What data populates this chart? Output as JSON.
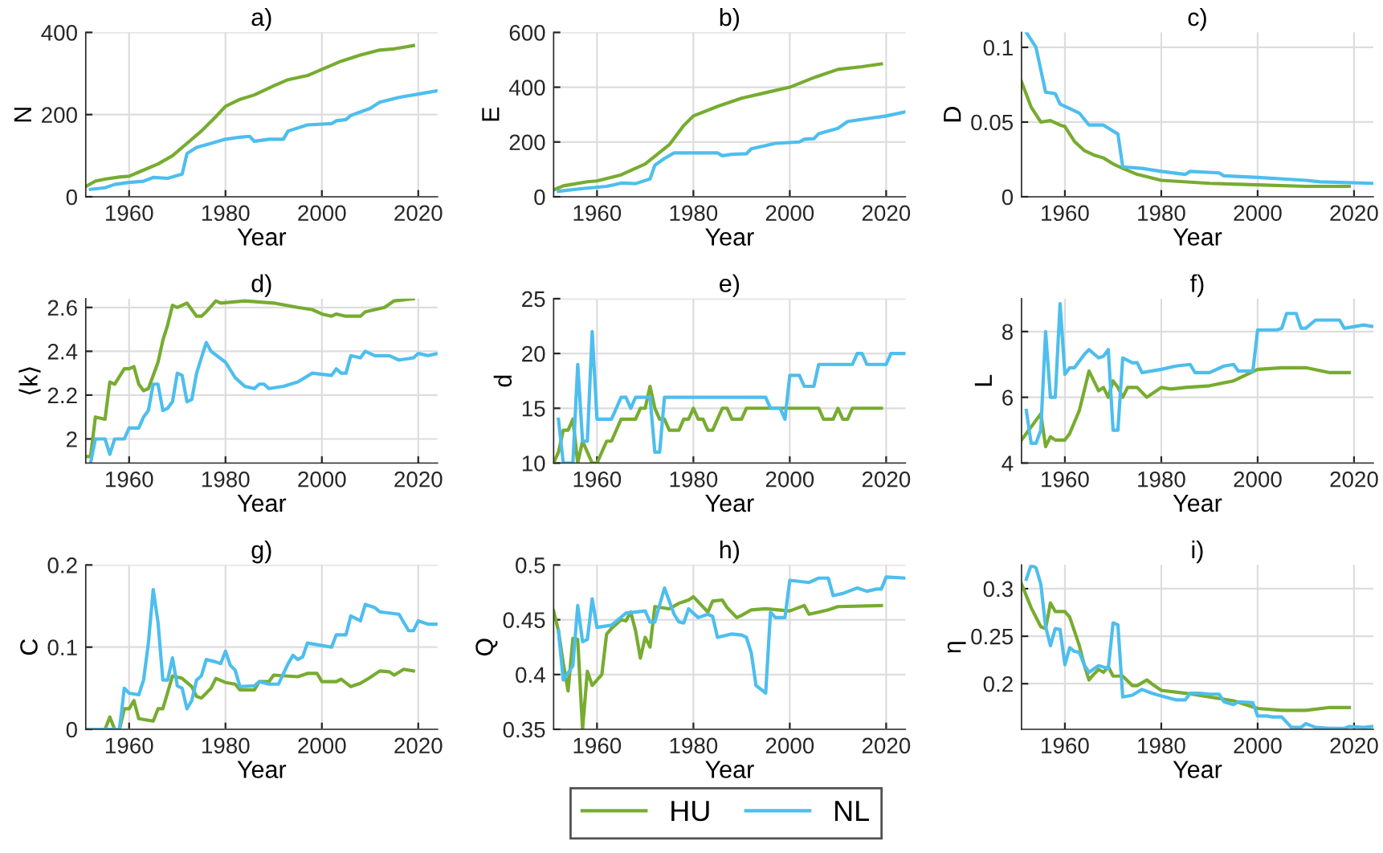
{
  "chart_data": [
    {
      "type": "line",
      "title": "a)",
      "xlabel": "Year",
      "ylabel": "N",
      "xlim": [
        1951,
        2024
      ],
      "xticks": [
        1960,
        1980,
        2000,
        2020
      ],
      "ylim": [
        0,
        400
      ],
      "yticks": [
        0,
        200,
        400
      ],
      "grid": true,
      "legend": "bottom",
      "series": [
        {
          "name": "HU",
          "color": "#77ac30",
          "x": [
            1951,
            1953,
            1955,
            1958,
            1960,
            1963,
            1966,
            1969,
            1972,
            1975,
            1978,
            1980,
            1983,
            1986,
            1990,
            1993,
            1997,
            2000,
            2004,
            2008,
            2012,
            2015,
            2019
          ],
          "values": [
            25,
            38,
            43,
            48,
            50,
            65,
            80,
            100,
            130,
            160,
            195,
            220,
            237,
            248,
            270,
            285,
            295,
            310,
            330,
            345,
            357,
            360,
            368
          ]
        },
        {
          "name": "NL",
          "color": "#4dbeee",
          "x": [
            1952,
            1955,
            1957,
            1960,
            1963,
            1965,
            1968,
            1971,
            1972,
            1974,
            1977,
            1980,
            1983,
            1985,
            1986,
            1989,
            1992,
            1993,
            1997,
            2002,
            2003,
            2005,
            2006,
            2010,
            2012,
            2016,
            2020,
            2024
          ],
          "values": [
            18,
            22,
            30,
            35,
            38,
            47,
            45,
            55,
            105,
            120,
            130,
            140,
            145,
            147,
            135,
            140,
            140,
            160,
            175,
            178,
            185,
            188,
            198,
            215,
            230,
            242,
            250,
            258
          ]
        }
      ]
    },
    {
      "type": "line",
      "title": "b)",
      "xlabel": "Year",
      "ylabel": "E",
      "xlim": [
        1951,
        2024
      ],
      "xticks": [
        1960,
        1980,
        2000,
        2020
      ],
      "ylim": [
        0,
        600
      ],
      "yticks": [
        0,
        200,
        400,
        600
      ],
      "grid": true,
      "legend": false,
      "series": [
        {
          "color": "#77ac30",
          "x": [
            1951,
            1953,
            1958,
            1960,
            1965,
            1970,
            1975,
            1978,
            1980,
            1985,
            1990,
            1995,
            2000,
            2005,
            2010,
            2015,
            2019
          ],
          "values": [
            25,
            40,
            55,
            58,
            80,
            120,
            190,
            260,
            295,
            330,
            360,
            380,
            400,
            435,
            465,
            475,
            485
          ]
        },
        {
          "color": "#4dbeee",
          "x": [
            1952,
            1957,
            1962,
            1965,
            1968,
            1971,
            1972,
            1974,
            1976,
            1985,
            1986,
            1988,
            1991,
            1992,
            1997,
            2002,
            2003,
            2005,
            2006,
            2010,
            2012,
            2016,
            2020,
            2024
          ],
          "values": [
            20,
            30,
            38,
            50,
            48,
            65,
            115,
            140,
            160,
            160,
            150,
            155,
            157,
            175,
            195,
            200,
            210,
            212,
            230,
            250,
            275,
            285,
            295,
            310
          ]
        }
      ]
    },
    {
      "type": "line",
      "title": "c)",
      "xlabel": "Year",
      "ylabel": "D",
      "xlim": [
        1951,
        2024
      ],
      "xticks": [
        1960,
        1980,
        2000,
        2020
      ],
      "ylim": [
        0,
        0.11
      ],
      "yticks": [
        0,
        0.05,
        0.1
      ],
      "grid": true,
      "legend": false,
      "series": [
        {
          "color": "#77ac30",
          "x": [
            1951,
            1953,
            1955,
            1957,
            1959,
            1960,
            1962,
            1964,
            1966,
            1968,
            1970,
            1972,
            1975,
            1980,
            1990,
            2000,
            2010,
            2019
          ],
          "values": [
            0.077,
            0.06,
            0.05,
            0.051,
            0.048,
            0.047,
            0.037,
            0.031,
            0.028,
            0.026,
            0.022,
            0.019,
            0.015,
            0.011,
            0.009,
            0.008,
            0.007,
            0.007
          ]
        },
        {
          "color": "#4dbeee",
          "x": [
            1952,
            1954,
            1956,
            1958,
            1959,
            1961,
            1963,
            1965,
            1968,
            1971,
            1972,
            1976,
            1980,
            1985,
            1986,
            1992,
            1993,
            2000,
            2010,
            2013,
            2024
          ],
          "values": [
            0.11,
            0.1,
            0.07,
            0.069,
            0.062,
            0.059,
            0.056,
            0.048,
            0.048,
            0.042,
            0.02,
            0.019,
            0.017,
            0.015,
            0.017,
            0.016,
            0.014,
            0.013,
            0.011,
            0.01,
            0.009
          ]
        }
      ]
    },
    {
      "type": "line",
      "title": "d)",
      "xlabel": "Year",
      "ylabel": "⟨k⟩",
      "xlim": [
        1951,
        2024
      ],
      "xticks": [
        1960,
        1980,
        2000,
        2020
      ],
      "ylim": [
        1.89,
        2.64
      ],
      "yticks": [
        2,
        2.2,
        2.4,
        2.6
      ],
      "grid": true,
      "legend": false,
      "series": [
        {
          "color": "#77ac30",
          "x": [
            1951,
            1952,
            1953,
            1955,
            1956,
            1957,
            1959,
            1960,
            1961,
            1962,
            1963,
            1964,
            1966,
            1967,
            1968,
            1969,
            1970,
            1972,
            1974,
            1975,
            1976,
            1978,
            1979,
            1984,
            1990,
            1995,
            1998,
            2000,
            2002,
            2003,
            2005,
            2008,
            2009,
            2013,
            2015,
            2019
          ],
          "values": [
            1.92,
            1.92,
            2.1,
            2.09,
            2.26,
            2.25,
            2.32,
            2.32,
            2.33,
            2.25,
            2.22,
            2.23,
            2.35,
            2.45,
            2.52,
            2.61,
            2.6,
            2.62,
            2.56,
            2.56,
            2.58,
            2.63,
            2.62,
            2.63,
            2.62,
            2.6,
            2.59,
            2.57,
            2.56,
            2.57,
            2.56,
            2.56,
            2.58,
            2.6,
            2.63,
            2.64
          ]
        },
        {
          "color": "#4dbeee",
          "x": [
            1952,
            1953,
            1955,
            1956,
            1957,
            1959,
            1960,
            1962,
            1963,
            1964,
            1965,
            1966,
            1967,
            1968,
            1969,
            1970,
            1971,
            1972,
            1973,
            1974,
            1976,
            1977,
            1980,
            1982,
            1984,
            1986,
            1987,
            1988,
            1989,
            1992,
            1995,
            1998,
            2002,
            2003,
            2004,
            2005,
            2006,
            2008,
            2009,
            2011,
            2014,
            2016,
            2019,
            2020,
            2022,
            2024
          ],
          "values": [
            1.89,
            2.0,
            2.0,
            1.93,
            2.0,
            2.0,
            2.05,
            2.05,
            2.1,
            2.13,
            2.25,
            2.25,
            2.13,
            2.14,
            2.17,
            2.3,
            2.29,
            2.17,
            2.18,
            2.3,
            2.44,
            2.4,
            2.35,
            2.28,
            2.24,
            2.23,
            2.25,
            2.25,
            2.23,
            2.24,
            2.26,
            2.3,
            2.29,
            2.32,
            2.3,
            2.3,
            2.38,
            2.37,
            2.4,
            2.38,
            2.38,
            2.36,
            2.37,
            2.39,
            2.38,
            2.39
          ]
        }
      ]
    },
    {
      "type": "line",
      "title": "e)",
      "xlabel": "Year",
      "ylabel": "d",
      "xlim": [
        1951,
        2024
      ],
      "xticks": [
        1960,
        1980,
        2000,
        2020
      ],
      "ylim": [
        10,
        25
      ],
      "yticks": [
        10,
        15,
        20,
        25
      ],
      "grid": true,
      "legend": false,
      "series": [
        {
          "color": "#77ac30",
          "x": [
            1951,
            1952,
            1953,
            1954,
            1955,
            1956,
            1957,
            1958,
            1959,
            1960,
            1961,
            1962,
            1963,
            1964,
            1965,
            1968,
            1969,
            1970,
            1971,
            1972,
            1973,
            1974,
            1975,
            1977,
            1978,
            1979,
            1980,
            1981,
            1982,
            1983,
            1984,
            1985,
            1986,
            1987,
            1988,
            1990,
            1991,
            2006,
            2007,
            2009,
            2010,
            2011,
            2012,
            2013,
            2019
          ],
          "values": [
            10,
            11,
            13,
            13,
            14,
            10,
            12,
            11,
            10,
            10,
            11,
            12,
            12,
            13,
            14,
            14,
            15,
            15,
            17,
            15,
            14,
            14,
            13,
            13,
            14,
            14,
            15,
            14,
            14,
            13,
            13,
            14,
            15,
            15,
            14,
            14,
            15,
            15,
            14,
            14,
            15,
            14,
            14,
            15,
            15
          ]
        },
        {
          "color": "#4dbeee",
          "x": [
            1952,
            1953,
            1955,
            1956,
            1957,
            1958,
            1959,
            1960,
            1963,
            1965,
            1966,
            1967,
            1968,
            1970,
            1971,
            1972,
            1973,
            1974,
            1995,
            1996,
            1998,
            1999,
            2000,
            2002,
            2003,
            2005,
            2006,
            2013,
            2014,
            2015,
            2016,
            2020,
            2021,
            2024
          ],
          "values": [
            14,
            10,
            10,
            19,
            12,
            12,
            22,
            14,
            14,
            16,
            16,
            15,
            16,
            16,
            16,
            11,
            11,
            16,
            16,
            15,
            15,
            14,
            18,
            18,
            17,
            17,
            19,
            19,
            20,
            20,
            19,
            19,
            20,
            20
          ]
        }
      ]
    },
    {
      "type": "line",
      "title": "f)",
      "xlabel": "Year",
      "ylabel": "L",
      "xlim": [
        1951,
        2024
      ],
      "xticks": [
        1960,
        1980,
        2000,
        2020
      ],
      "ylim": [
        4,
        9
      ],
      "yticks": [
        4,
        6,
        8
      ],
      "grid": true,
      "legend": false,
      "series": [
        {
          "color": "#77ac30",
          "x": [
            1951,
            1953,
            1955,
            1956,
            1957,
            1958,
            1960,
            1961,
            1963,
            1964,
            1965,
            1966,
            1967,
            1968,
            1969,
            1970,
            1971,
            1972,
            1973,
            1975,
            1977,
            1978,
            1980,
            1982,
            1985,
            1990,
            1995,
            2000,
            2005,
            2010,
            2015,
            2019
          ],
          "values": [
            4.7,
            5.1,
            5.5,
            4.5,
            4.8,
            4.7,
            4.7,
            4.9,
            5.6,
            6.2,
            6.8,
            6.5,
            6.2,
            6.3,
            6.0,
            6.5,
            6.3,
            6.0,
            6.3,
            6.3,
            6.0,
            6.1,
            6.3,
            6.25,
            6.3,
            6.35,
            6.5,
            6.85,
            6.9,
            6.9,
            6.75,
            6.75
          ]
        },
        {
          "color": "#4dbeee",
          "x": [
            1952,
            1953,
            1954,
            1955,
            1956,
            1957,
            1958,
            1959,
            1960,
            1961,
            1962,
            1964,
            1965,
            1967,
            1968,
            1969,
            1970,
            1971,
            1972,
            1974,
            1975,
            1976,
            1978,
            1980,
            1983,
            1986,
            1987,
            1990,
            1993,
            1995,
            1996,
            1999,
            2000,
            2004,
            2005,
            2006,
            2008,
            2009,
            2010,
            2012,
            2017,
            2018,
            2020,
            2022,
            2024
          ],
          "values": [
            5.6,
            4.6,
            4.6,
            5.0,
            8.0,
            6.0,
            6.0,
            8.85,
            6.7,
            6.9,
            6.9,
            7.3,
            7.45,
            7.2,
            7.25,
            7.45,
            5.0,
            5.0,
            7.2,
            7.05,
            7.05,
            6.75,
            6.8,
            6.85,
            6.95,
            7.0,
            6.75,
            6.75,
            6.95,
            7.0,
            6.8,
            6.8,
            8.05,
            8.05,
            8.1,
            8.55,
            8.55,
            8.1,
            8.1,
            8.35,
            8.35,
            8.1,
            8.15,
            8.2,
            8.15
          ]
        }
      ]
    },
    {
      "type": "line",
      "title": "g)",
      "xlabel": "Year",
      "ylabel": "C",
      "xlim": [
        1951,
        2024
      ],
      "xticks": [
        1960,
        1980,
        2000,
        2020
      ],
      "ylim": [
        0,
        0.2
      ],
      "yticks": [
        0,
        0.1,
        0.2
      ],
      "grid": true,
      "legend": false,
      "series": [
        {
          "color": "#77ac30",
          "x": [
            1951,
            1955,
            1956,
            1957,
            1958,
            1959,
            1960,
            1961,
            1962,
            1965,
            1966,
            1967,
            1968,
            1969,
            1971,
            1973,
            1974,
            1975,
            1977,
            1978,
            1980,
            1982,
            1983,
            1986,
            1987,
            1989,
            1990,
            1995,
            1997,
            1999,
            2000,
            2003,
            2004,
            2006,
            2008,
            2010,
            2012,
            2014,
            2015,
            2017,
            2019
          ],
          "values": [
            0,
            0,
            0.015,
            0,
            0,
            0.025,
            0.025,
            0.035,
            0.013,
            0.01,
            0.025,
            0.025,
            0.045,
            0.065,
            0.062,
            0.052,
            0.04,
            0.038,
            0.05,
            0.062,
            0.057,
            0.055,
            0.048,
            0.048,
            0.058,
            0.058,
            0.066,
            0.064,
            0.068,
            0.068,
            0.058,
            0.058,
            0.061,
            0.052,
            0.056,
            0.063,
            0.071,
            0.07,
            0.066,
            0.073,
            0.071
          ]
        },
        {
          "color": "#4dbeee",
          "x": [
            1952,
            1958,
            1959,
            1960,
            1962,
            1963,
            1964,
            1965,
            1966,
            1967,
            1968,
            1969,
            1970,
            1971,
            1972,
            1973,
            1974,
            1975,
            1976,
            1978,
            1979,
            1980,
            1981,
            1982,
            1983,
            1986,
            1987,
            1989,
            1991,
            1993,
            1994,
            1995,
            1996,
            1997,
            1999,
            2002,
            2003,
            2005,
            2006,
            2008,
            2009,
            2011,
            2012,
            2016,
            2017,
            2018,
            2019,
            2020,
            2022,
            2024
          ],
          "values": [
            0,
            0,
            0.05,
            0.044,
            0.042,
            0.06,
            0.105,
            0.17,
            0.13,
            0.06,
            0.06,
            0.087,
            0.053,
            0.05,
            0.025,
            0.035,
            0.06,
            0.065,
            0.085,
            0.082,
            0.08,
            0.095,
            0.078,
            0.072,
            0.052,
            0.053,
            0.058,
            0.055,
            0.055,
            0.08,
            0.09,
            0.085,
            0.088,
            0.105,
            0.103,
            0.1,
            0.115,
            0.115,
            0.138,
            0.132,
            0.152,
            0.148,
            0.143,
            0.14,
            0.13,
            0.12,
            0.12,
            0.132,
            0.128,
            0.128
          ]
        }
      ]
    },
    {
      "type": "line",
      "title": "h)",
      "xlabel": "Year",
      "ylabel": "Q",
      "xlim": [
        1951,
        2024
      ],
      "xticks": [
        1960,
        1980,
        2000,
        2020
      ],
      "ylim": [
        0.35,
        0.5
      ],
      "yticks": [
        0.35,
        0.4,
        0.45,
        0.5
      ],
      "grid": true,
      "legend": false,
      "series": [
        {
          "color": "#77ac30",
          "x": [
            1951,
            1952,
            1953,
            1954,
            1955,
            1956,
            1957,
            1958,
            1959,
            1961,
            1962,
            1963,
            1965,
            1966,
            1967,
            1968,
            1969,
            1970,
            1971,
            1972,
            1975,
            1977,
            1979,
            1980,
            1983,
            1984,
            1986,
            1987,
            1989,
            1990,
            1992,
            1995,
            2000,
            2003,
            2004,
            2008,
            2010,
            2019
          ],
          "values": [
            0.458,
            0.44,
            0.41,
            0.385,
            0.433,
            0.432,
            0.35,
            0.403,
            0.39,
            0.4,
            0.437,
            0.442,
            0.45,
            0.449,
            0.457,
            0.44,
            0.415,
            0.434,
            0.425,
            0.462,
            0.46,
            0.465,
            0.468,
            0.471,
            0.457,
            0.467,
            0.468,
            0.461,
            0.452,
            0.454,
            0.459,
            0.46,
            0.458,
            0.463,
            0.455,
            0.459,
            0.462,
            0.463
          ]
        },
        {
          "color": "#4dbeee",
          "x": [
            1952,
            1953,
            1955,
            1956,
            1957,
            1958,
            1959,
            1960,
            1963,
            1966,
            1970,
            1971,
            1972,
            1974,
            1976,
            1977,
            1978,
            1979,
            1981,
            1983,
            1984,
            1985,
            1988,
            1990,
            1991,
            1992,
            1993,
            1995,
            1996,
            1997,
            1999,
            2000,
            2004,
            2006,
            2008,
            2009,
            2011,
            2014,
            2016,
            2018,
            2019,
            2020,
            2024
          ],
          "values": [
            0.44,
            0.395,
            0.408,
            0.463,
            0.43,
            0.432,
            0.469,
            0.443,
            0.445,
            0.456,
            0.458,
            0.448,
            0.448,
            0.479,
            0.455,
            0.448,
            0.447,
            0.46,
            0.452,
            0.455,
            0.453,
            0.434,
            0.437,
            0.436,
            0.434,
            0.42,
            0.39,
            0.383,
            0.457,
            0.452,
            0.452,
            0.486,
            0.484,
            0.488,
            0.488,
            0.472,
            0.474,
            0.479,
            0.476,
            0.478,
            0.478,
            0.489,
            0.488
          ]
        }
      ]
    },
    {
      "type": "line",
      "title": "i)",
      "xlabel": "Year",
      "ylabel": "η",
      "xlim": [
        1951,
        2024
      ],
      "xticks": [
        1960,
        1980,
        2000,
        2020
      ],
      "ylim": [
        0.152,
        0.325
      ],
      "yticks": [
        0.2,
        0.25,
        0.3
      ],
      "grid": true,
      "legend": false,
      "series": [
        {
          "color": "#77ac30",
          "x": [
            1951,
            1953,
            1955,
            1956,
            1957,
            1958,
            1960,
            1961,
            1963,
            1964,
            1965,
            1966,
            1967,
            1968,
            1969,
            1970,
            1972,
            1974,
            1975,
            1977,
            1978,
            1980,
            1985,
            1990,
            1995,
            2000,
            2005,
            2010,
            2015,
            2019
          ],
          "values": [
            0.305,
            0.28,
            0.26,
            0.258,
            0.285,
            0.276,
            0.276,
            0.27,
            0.24,
            0.22,
            0.204,
            0.21,
            0.215,
            0.212,
            0.218,
            0.208,
            0.208,
            0.198,
            0.198,
            0.204,
            0.2,
            0.193,
            0.19,
            0.186,
            0.182,
            0.174,
            0.172,
            0.172,
            0.175,
            0.175
          ]
        },
        {
          "color": "#4dbeee",
          "x": [
            1952,
            1953,
            1954,
            1955,
            1956,
            1957,
            1958,
            1959,
            1960,
            1961,
            1962,
            1963,
            1964,
            1965,
            1967,
            1969,
            1970,
            1971,
            1972,
            1974,
            1976,
            1978,
            1980,
            1983,
            1985,
            1986,
            1988,
            1990,
            1992,
            1993,
            1995,
            1996,
            1999,
            2000,
            2002,
            2003,
            2005,
            2007,
            2009,
            2010,
            2012,
            2015,
            2018,
            2019,
            2022,
            2024
          ],
          "values": [
            0.31,
            0.325,
            0.322,
            0.305,
            0.26,
            0.24,
            0.258,
            0.257,
            0.22,
            0.238,
            0.234,
            0.233,
            0.22,
            0.212,
            0.219,
            0.216,
            0.264,
            0.262,
            0.186,
            0.188,
            0.194,
            0.19,
            0.187,
            0.183,
            0.183,
            0.19,
            0.19,
            0.189,
            0.189,
            0.181,
            0.178,
            0.181,
            0.18,
            0.166,
            0.166,
            0.165,
            0.165,
            0.154,
            0.154,
            0.158,
            0.154,
            0.153,
            0.153,
            0.155,
            0.154,
            0.155
          ]
        }
      ]
    }
  ]
}
